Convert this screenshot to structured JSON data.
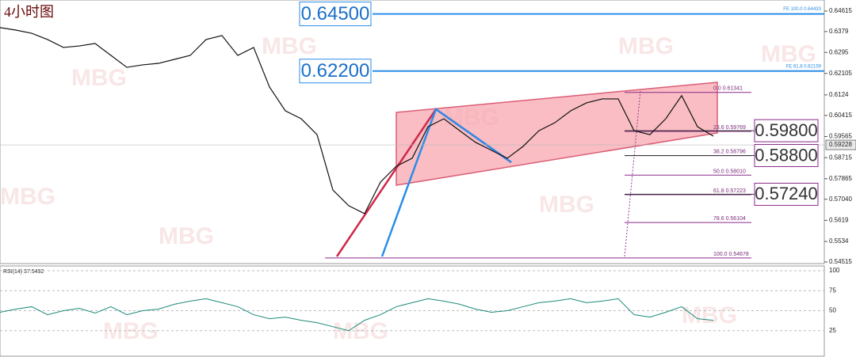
{
  "title": "4小时图",
  "watermark": "MBG",
  "chart_data": {
    "type": "line",
    "color": "#111111",
    "values": [
      0.6395,
      0.6385,
      0.6372,
      0.6347,
      0.6315,
      0.6321,
      0.6331,
      0.6283,
      0.6235,
      0.6245,
      0.6251,
      0.6267,
      0.6283,
      0.6347,
      0.6363,
      0.6283,
      0.6315,
      0.6156,
      0.606,
      0.6028,
      0.5964,
      0.5741,
      0.5678,
      0.5646,
      0.5773,
      0.5837,
      0.5869,
      0.5996,
      0.6028,
      0.598,
      0.5933,
      0.5901,
      0.5869,
      0.5917,
      0.598,
      0.6012,
      0.606,
      0.6092,
      0.6108,
      0.6108,
      0.598,
      0.5964,
      0.6028,
      0.6121,
      0.5996,
      0.5958
    ],
    "ylim": [
      0.5445,
      0.6506
    ],
    "yticks": [
      0.64615,
      0.6379,
      0.6295,
      0.62105,
      0.6124,
      0.60415,
      0.59565,
      0.58715,
      0.57865,
      {
        "value": 0.5704,
        "label": "0.57040"
      },
      0.5619,
      0.5534,
      0.54515
    ],
    "current_price": 0.59228,
    "targets": [
      {
        "text": "0.64500",
        "value": 0.645,
        "note": "FE 100.0 0.64433"
      },
      {
        "text": "0.62200",
        "value": 0.622,
        "note": "FE 61.8 0.62159"
      }
    ],
    "fib_levels": [
      {
        "level": "0.0",
        "price": 0.61341
      },
      {
        "level": "23.6",
        "price": 0.59769
      },
      {
        "level": "38.2",
        "price": 0.58796
      },
      {
        "level": "50.0",
        "price": {
          "value": 0.5801,
          "label": "0.58010"
        }
      },
      {
        "level": "61.8",
        "price": 0.57223
      },
      {
        "level": "78.6",
        "price": 0.56104
      },
      {
        "level": "100.0",
        "price": 0.54678
      }
    ],
    "levels": [
      {
        "text": "0.59800",
        "value": 0.598
      },
      {
        "text": "0.58800",
        "value": 0.588
      },
      {
        "text": "0.57240",
        "value": 0.5724
      }
    ],
    "rsi": {
      "label": "RSI(14) 37.5492",
      "color": "#1a8a7a",
      "values": [
        48,
        52,
        55,
        45,
        50,
        53,
        47,
        55,
        45,
        50,
        52,
        58,
        62,
        65,
        60,
        55,
        45,
        40,
        42,
        38,
        35,
        30,
        25,
        38,
        45,
        55,
        60,
        65,
        62,
        58,
        52,
        48,
        50,
        55,
        60,
        62,
        65,
        60,
        62,
        65,
        45,
        42,
        48,
        55,
        40,
        38
      ],
      "ylim": [
        0,
        100
      ],
      "yticks": [
        25,
        50,
        75,
        100
      ]
    }
  }
}
